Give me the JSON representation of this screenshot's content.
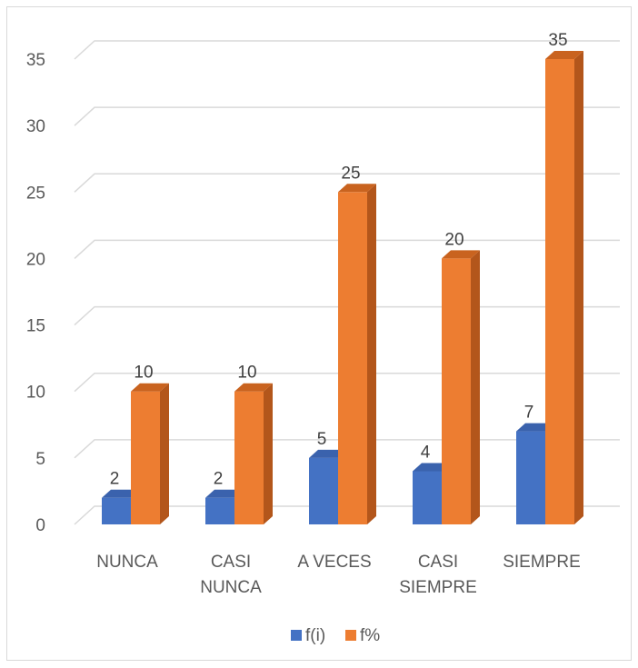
{
  "chart_data": {
    "type": "bar",
    "variant": "3d-clustered-column",
    "title": "",
    "xlabel": "",
    "ylabel": "",
    "categories": [
      [
        "NUNCA"
      ],
      [
        "CASI",
        "NUNCA"
      ],
      [
        "A VECES"
      ],
      [
        "CASI",
        "SIEMPRE"
      ],
      [
        "SIEMPRE"
      ]
    ],
    "series": [
      {
        "name": "f(i)",
        "values": [
          2,
          2,
          5,
          4,
          7
        ],
        "color": "#4472c4",
        "side_color": "#2f5597",
        "top_color": "#3a62ad"
      },
      {
        "name": "f%",
        "values": [
          10,
          10,
          25,
          20,
          35
        ],
        "color": "#ed7d31",
        "side_color": "#b3561b",
        "top_color": "#c9631f"
      }
    ],
    "ylim": [
      0,
      35
    ],
    "yticks": [
      0,
      5,
      10,
      15,
      20,
      25,
      30,
      35
    ],
    "grid": true,
    "gridline_color": "#d9d9d9",
    "data_labels": true,
    "legend_position": "bottom"
  }
}
